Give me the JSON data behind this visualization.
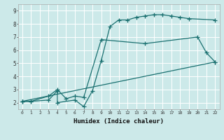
{
  "title": "",
  "xlabel": "Humidex (Indice chaleur)",
  "ylabel": "",
  "bg_color": "#cce9e9",
  "grid_color": "#ffffff",
  "line_color": "#1a7070",
  "xlim": [
    -0.5,
    22.5
  ],
  "ylim": [
    1.5,
    9.5
  ],
  "xticks": [
    0,
    1,
    2,
    3,
    4,
    5,
    6,
    7,
    8,
    9,
    10,
    11,
    12,
    13,
    14,
    15,
    16,
    17,
    18,
    19,
    20,
    21,
    22
  ],
  "yticks": [
    2,
    3,
    4,
    5,
    6,
    7,
    8,
    9
  ],
  "line1_x": [
    0,
    1,
    3,
    4,
    4,
    6,
    7,
    8,
    9,
    10,
    11,
    12,
    13,
    14,
    15,
    16,
    17,
    18,
    19,
    22
  ],
  "line1_y": [
    2.1,
    2.1,
    2.2,
    2.9,
    2.0,
    2.2,
    1.7,
    2.9,
    5.2,
    7.8,
    8.3,
    8.3,
    8.5,
    8.6,
    8.7,
    8.7,
    8.6,
    8.5,
    8.4,
    8.3
  ],
  "line2_x": [
    0,
    1,
    3,
    4,
    5,
    6,
    7,
    9,
    14,
    20,
    21,
    22
  ],
  "line2_y": [
    2.1,
    2.1,
    2.5,
    3.0,
    2.3,
    2.5,
    2.4,
    6.8,
    6.5,
    7.0,
    5.8,
    5.1
  ],
  "line3_x": [
    0,
    22
  ],
  "line3_y": [
    2.1,
    5.1
  ]
}
